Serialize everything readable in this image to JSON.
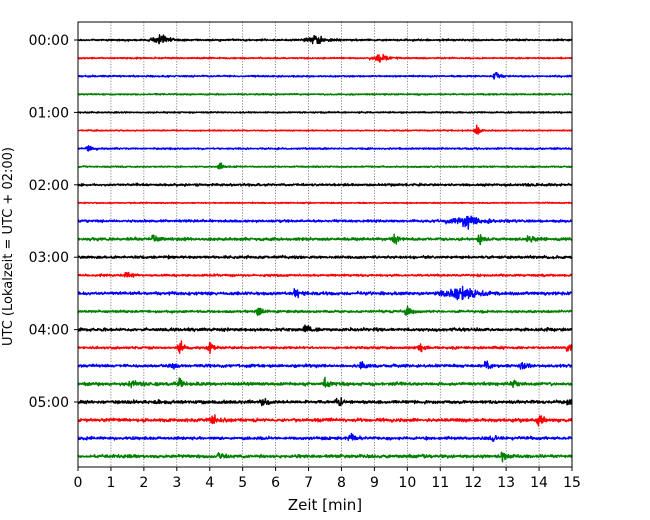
{
  "chart_data": {
    "type": "line",
    "title": "",
    "xlabel": "Zeit  [min]",
    "ylabel": "UTC (Lokalzeit = UTC + 02:00)",
    "xlim": [
      0,
      15
    ],
    "x_ticks": [
      0,
      1,
      2,
      3,
      4,
      5,
      6,
      7,
      8,
      9,
      10,
      11,
      12,
      13,
      14,
      15
    ],
    "y_tick_labels": [
      "00:00",
      "01:00",
      "02:00",
      "03:00",
      "04:00",
      "05:00"
    ],
    "vertical_grid": true,
    "trace_colors": [
      "#000000",
      "#ff0000",
      "#0000ff",
      "#008000"
    ],
    "traces": [
      {
        "start": "00:00",
        "noise": 0.8,
        "events": [
          [
            2.6,
            4,
            0.5
          ],
          [
            7.3,
            4,
            0.5
          ]
        ]
      },
      {
        "start": "00:15",
        "noise": 0.6,
        "events": [
          [
            9.2,
            4,
            0.4
          ]
        ]
      },
      {
        "start": "00:30",
        "noise": 0.7,
        "events": [
          [
            12.7,
            5,
            0.1
          ]
        ]
      },
      {
        "start": "00:45",
        "noise": 0.6,
        "events": []
      },
      {
        "start": "01:00",
        "noise": 0.6,
        "events": []
      },
      {
        "start": "01:15",
        "noise": 0.5,
        "events": [
          [
            12.1,
            6,
            0.1
          ]
        ]
      },
      {
        "start": "01:30",
        "noise": 0.7,
        "events": [
          [
            0.3,
            3,
            0.1
          ]
        ]
      },
      {
        "start": "01:45",
        "noise": 0.6,
        "events": [
          [
            4.3,
            5,
            0.1
          ]
        ]
      },
      {
        "start": "02:00",
        "noise": 1.0,
        "events": []
      },
      {
        "start": "02:15",
        "noise": 0.5,
        "events": []
      },
      {
        "start": "02:30",
        "noise": 1.0,
        "events": [
          [
            11.9,
            5,
            0.9
          ]
        ]
      },
      {
        "start": "02:45",
        "noise": 1.2,
        "events": [
          [
            2.3,
            4,
            0.1
          ],
          [
            9.6,
            4,
            0.1
          ],
          [
            12.2,
            5,
            0.1
          ],
          [
            13.8,
            3,
            0.3
          ]
        ]
      },
      {
        "start": "03:00",
        "noise": 1.1,
        "events": []
      },
      {
        "start": "03:15",
        "noise": 0.9,
        "events": [
          [
            1.5,
            3,
            0.1
          ]
        ]
      },
      {
        "start": "03:30",
        "noise": 1.3,
        "events": [
          [
            6.6,
            6,
            0.1
          ],
          [
            11.8,
            5,
            1.0
          ]
        ]
      },
      {
        "start": "03:45",
        "noise": 1.0,
        "events": [
          [
            5.5,
            4,
            0.1
          ],
          [
            10.0,
            6,
            0.1
          ]
        ]
      },
      {
        "start": "04:00",
        "noise": 1.3,
        "events": [
          [
            6.9,
            6,
            0.1
          ]
        ]
      },
      {
        "start": "04:15",
        "noise": 1.0,
        "events": [
          [
            3.1,
            7,
            0.1
          ],
          [
            4.0,
            5,
            0.1
          ],
          [
            10.4,
            5,
            0.1
          ],
          [
            14.9,
            4,
            0.1
          ]
        ]
      },
      {
        "start": "04:30",
        "noise": 1.2,
        "events": [
          [
            2.9,
            4,
            0.1
          ],
          [
            8.6,
            4,
            0.1
          ],
          [
            12.4,
            4,
            0.1
          ],
          [
            13.5,
            4,
            0.1
          ]
        ]
      },
      {
        "start": "04:45",
        "noise": 1.3,
        "events": [
          [
            1.7,
            3,
            0.3
          ],
          [
            3.1,
            4,
            0.1
          ],
          [
            7.5,
            5,
            0.1
          ],
          [
            13.2,
            4,
            0.1
          ]
        ]
      },
      {
        "start": "05:00",
        "noise": 1.3,
        "events": [
          [
            5.6,
            5,
            0.1
          ],
          [
            7.9,
            6,
            0.1
          ],
          [
            14.9,
            5,
            0.1
          ]
        ]
      },
      {
        "start": "05:15",
        "noise": 1.4,
        "events": [
          [
            4.1,
            6,
            0.1
          ],
          [
            14.0,
            6,
            0.1
          ]
        ]
      },
      {
        "start": "05:30",
        "noise": 1.2,
        "events": [
          [
            8.3,
            4,
            0.1
          ],
          [
            12.6,
            4,
            0.1
          ]
        ]
      },
      {
        "start": "05:45",
        "noise": 1.3,
        "events": [
          [
            4.3,
            4,
            0.2
          ],
          [
            12.9,
            4,
            0.1
          ]
        ]
      }
    ]
  }
}
